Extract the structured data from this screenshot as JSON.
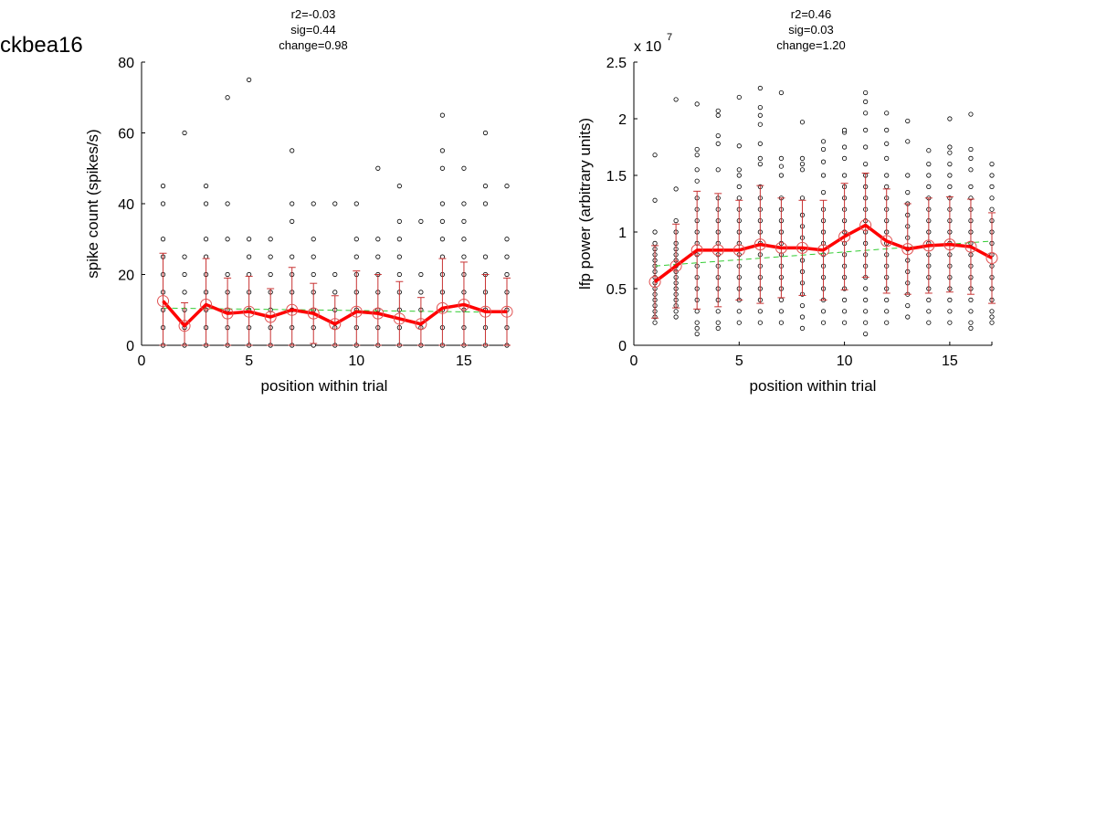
{
  "figure": {
    "label": "ckbea16"
  },
  "chart_data": [
    {
      "type": "scatter",
      "title": [
        "r2=-0.03",
        "sig=0.44",
        "change=0.98"
      ],
      "xlabel": "position within trial",
      "ylabel": "spike count (spikes/s)",
      "exponent_label": "",
      "xlim": [
        0,
        17
      ],
      "ylim": [
        0,
        80
      ],
      "xticks": [
        0,
        5,
        10,
        15
      ],
      "yticks": [
        0,
        20,
        40,
        60,
        80
      ],
      "ytick_labels": [
        "0",
        "20",
        "40",
        "60",
        "80"
      ],
      "raw_points": [
        {
          "x": 1,
          "y": [
            0,
            5,
            10,
            15,
            20,
            25,
            30,
            40,
            45
          ]
        },
        {
          "x": 2,
          "y": [
            0,
            5,
            10,
            15,
            20,
            25,
            60
          ]
        },
        {
          "x": 3,
          "y": [
            0,
            5,
            10,
            15,
            20,
            25,
            30,
            40,
            45
          ]
        },
        {
          "x": 4,
          "y": [
            0,
            5,
            10,
            15,
            20,
            30,
            40,
            70
          ]
        },
        {
          "x": 5,
          "y": [
            0,
            5,
            10,
            15,
            20,
            25,
            30,
            75
          ]
        },
        {
          "x": 6,
          "y": [
            0,
            5,
            10,
            15,
            20,
            25,
            30
          ]
        },
        {
          "x": 7,
          "y": [
            0,
            5,
            10,
            15,
            20,
            25,
            35,
            40,
            55
          ]
        },
        {
          "x": 8,
          "y": [
            0,
            5,
            10,
            15,
            20,
            25,
            30,
            40
          ]
        },
        {
          "x": 9,
          "y": [
            0,
            5,
            10,
            15,
            20,
            40
          ]
        },
        {
          "x": 10,
          "y": [
            0,
            5,
            10,
            15,
            20,
            25,
            30,
            40
          ]
        },
        {
          "x": 11,
          "y": [
            0,
            5,
            10,
            15,
            20,
            25,
            30,
            50
          ]
        },
        {
          "x": 12,
          "y": [
            0,
            5,
            10,
            15,
            20,
            25,
            30,
            35,
            45
          ]
        },
        {
          "x": 13,
          "y": [
            0,
            5,
            10,
            15,
            20,
            35
          ]
        },
        {
          "x": 14,
          "y": [
            0,
            5,
            10,
            15,
            20,
            25,
            30,
            35,
            40,
            50,
            55,
            65
          ]
        },
        {
          "x": 15,
          "y": [
            0,
            5,
            10,
            15,
            20,
            25,
            30,
            35,
            40,
            50
          ]
        },
        {
          "x": 16,
          "y": [
            0,
            5,
            10,
            15,
            20,
            25,
            40,
            45,
            60
          ]
        },
        {
          "x": 17,
          "y": [
            0,
            5,
            10,
            15,
            20,
            25,
            30,
            45
          ]
        }
      ],
      "mean": {
        "x": [
          1,
          2,
          3,
          4,
          5,
          6,
          7,
          8,
          9,
          10,
          11,
          12,
          13,
          14,
          15,
          16,
          17
        ],
        "y": [
          12.5,
          5.5,
          11.5,
          9,
          9.5,
          8,
          10,
          9,
          6,
          9.5,
          9,
          7.5,
          6,
          10.5,
          11.5,
          9.5,
          9.5
        ],
        "err": [
          13.5,
          6.5,
          13,
          10,
          10,
          8,
          12,
          8.5,
          8,
          11.5,
          11,
          10.5,
          7.5,
          14,
          12,
          10.5,
          9.5
        ]
      },
      "fit": {
        "x": [
          1,
          17
        ],
        "y": [
          10.5,
          9.3
        ]
      }
    },
    {
      "type": "scatter",
      "title": [
        "r2=0.46",
        "sig=0.03",
        "change=1.20"
      ],
      "xlabel": "position within trial",
      "ylabel": "lfp power (arbitrary units)",
      "exponent_label": "x 10",
      "exponent_value": "7",
      "xlim": [
        0,
        17
      ],
      "ylim": [
        0,
        2.5
      ],
      "xticks": [
        0,
        5,
        10,
        15
      ],
      "yticks": [
        0,
        0.5,
        1,
        1.5,
        2,
        2.5
      ],
      "ytick_labels": [
        "0",
        "0.5",
        "1",
        "1.5",
        "2",
        "2.5"
      ],
      "raw_points": [
        {
          "x": 1,
          "y": [
            0.2,
            0.25,
            0.3,
            0.35,
            0.4,
            0.45,
            0.5,
            0.55,
            0.6,
            0.65,
            0.7,
            0.75,
            0.8,
            0.85,
            0.9,
            1.0,
            1.28,
            1.68
          ]
        },
        {
          "x": 2,
          "y": [
            0.25,
            0.3,
            0.35,
            0.4,
            0.45,
            0.5,
            0.55,
            0.6,
            0.65,
            0.7,
            0.75,
            0.8,
            0.85,
            0.9,
            1.0,
            1.1,
            1.38,
            2.17
          ]
        },
        {
          "x": 3,
          "y": [
            0.1,
            0.15,
            0.2,
            0.3,
            0.4,
            0.5,
            0.6,
            0.7,
            0.8,
            0.9,
            1.0,
            1.1,
            1.2,
            1.3,
            1.45,
            1.55,
            1.68,
            1.73,
            2.13
          ]
        },
        {
          "x": 4,
          "y": [
            0.15,
            0.2,
            0.3,
            0.4,
            0.5,
            0.6,
            0.7,
            0.8,
            0.9,
            1.0,
            1.1,
            1.2,
            1.3,
            1.55,
            1.78,
            1.85,
            2.03,
            2.07
          ]
        },
        {
          "x": 5,
          "y": [
            0.2,
            0.3,
            0.4,
            0.5,
            0.6,
            0.7,
            0.8,
            0.9,
            1.0,
            1.1,
            1.2,
            1.3,
            1.4,
            1.5,
            1.55,
            1.76,
            2.19
          ]
        },
        {
          "x": 6,
          "y": [
            0.2,
            0.3,
            0.4,
            0.5,
            0.6,
            0.7,
            0.8,
            0.9,
            1.0,
            1.1,
            1.2,
            1.3,
            1.4,
            1.6,
            1.65,
            1.78,
            1.95,
            2.03,
            2.1,
            2.27
          ]
        },
        {
          "x": 7,
          "y": [
            0.2,
            0.3,
            0.4,
            0.5,
            0.6,
            0.7,
            0.8,
            0.9,
            1.0,
            1.1,
            1.2,
            1.3,
            1.5,
            1.58,
            1.65,
            2.23
          ]
        },
        {
          "x": 8,
          "y": [
            0.15,
            0.25,
            0.35,
            0.45,
            0.55,
            0.65,
            0.75,
            0.85,
            0.95,
            1.05,
            1.15,
            1.3,
            1.55,
            1.6,
            1.65,
            1.97
          ]
        },
        {
          "x": 9,
          "y": [
            0.2,
            0.3,
            0.4,
            0.5,
            0.6,
            0.7,
            0.8,
            0.9,
            1.0,
            1.1,
            1.2,
            1.35,
            1.5,
            1.62,
            1.73,
            1.8
          ]
        },
        {
          "x": 10,
          "y": [
            0.2,
            0.3,
            0.4,
            0.5,
            0.6,
            0.7,
            0.8,
            0.9,
            1.0,
            1.1,
            1.2,
            1.3,
            1.4,
            1.5,
            1.65,
            1.75,
            1.88,
            1.9
          ]
        },
        {
          "x": 11,
          "y": [
            0.1,
            0.2,
            0.3,
            0.4,
            0.5,
            0.6,
            0.7,
            0.8,
            0.9,
            1.0,
            1.1,
            1.2,
            1.3,
            1.4,
            1.5,
            1.6,
            1.75,
            1.9,
            2.05,
            2.15,
            2.23
          ]
        },
        {
          "x": 12,
          "y": [
            0.2,
            0.3,
            0.4,
            0.5,
            0.6,
            0.7,
            0.8,
            0.9,
            1.0,
            1.1,
            1.2,
            1.3,
            1.4,
            1.5,
            1.65,
            1.78,
            1.9,
            2.05
          ]
        },
        {
          "x": 13,
          "y": [
            0.25,
            0.35,
            0.45,
            0.55,
            0.65,
            0.75,
            0.85,
            0.95,
            1.05,
            1.15,
            1.25,
            1.35,
            1.5,
            1.8,
            1.98
          ]
        },
        {
          "x": 14,
          "y": [
            0.2,
            0.3,
            0.4,
            0.5,
            0.6,
            0.7,
            0.8,
            0.9,
            1.0,
            1.1,
            1.2,
            1.3,
            1.4,
            1.5,
            1.6,
            1.72
          ]
        },
        {
          "x": 15,
          "y": [
            0.2,
            0.3,
            0.4,
            0.5,
            0.6,
            0.7,
            0.8,
            0.9,
            1.0,
            1.1,
            1.2,
            1.3,
            1.4,
            1.5,
            1.6,
            1.7,
            1.75,
            2.0
          ]
        },
        {
          "x": 16,
          "y": [
            0.15,
            0.2,
            0.3,
            0.4,
            0.5,
            0.6,
            0.7,
            0.8,
            0.9,
            1.0,
            1.1,
            1.2,
            1.3,
            1.4,
            1.55,
            1.65,
            1.73,
            2.04
          ]
        },
        {
          "x": 17,
          "y": [
            0.2,
            0.25,
            0.3,
            0.4,
            0.5,
            0.6,
            0.7,
            0.8,
            0.9,
            1.0,
            1.1,
            1.2,
            1.3,
            1.4,
            1.5,
            1.6
          ]
        }
      ],
      "mean": {
        "x": [
          1,
          2,
          3,
          4,
          5,
          6,
          7,
          8,
          9,
          10,
          11,
          12,
          13,
          14,
          15,
          16,
          17
        ],
        "y": [
          0.56,
          0.7,
          0.84,
          0.84,
          0.84,
          0.89,
          0.86,
          0.86,
          0.84,
          0.96,
          1.06,
          0.92,
          0.85,
          0.88,
          0.89,
          0.87,
          0.77
        ],
        "err": [
          0.32,
          0.37,
          0.52,
          0.5,
          0.44,
          0.52,
          0.44,
          0.42,
          0.44,
          0.47,
          0.46,
          0.46,
          0.4,
          0.42,
          0.42,
          0.42,
          0.4
        ]
      },
      "fit": {
        "x": [
          1,
          17
        ],
        "y": [
          0.7,
          0.92
        ]
      }
    }
  ]
}
